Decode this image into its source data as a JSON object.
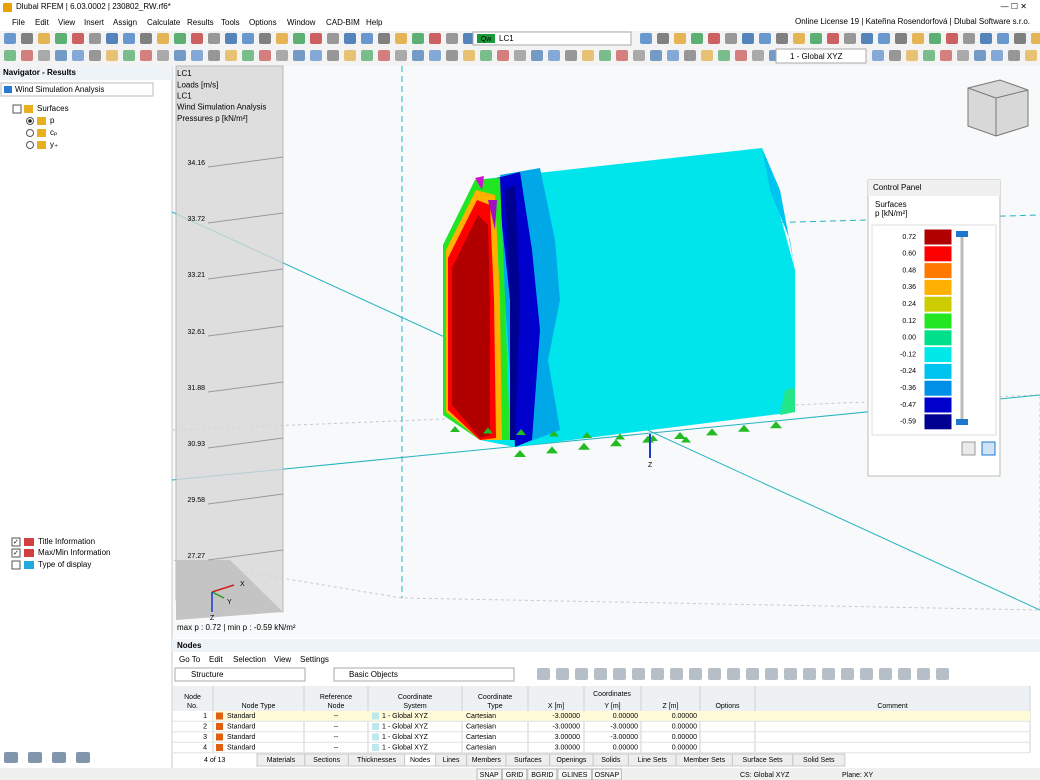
{
  "window": {
    "title": "Dlubal RFEM | 6.03.0002 | 230802_RW.rf6*",
    "license": "Online License 19 | Kateřina Rosendorfová | Dlubal Software s.r.o."
  },
  "menu": [
    "File",
    "Edit",
    "View",
    "Insert",
    "Assign",
    "Calculate",
    "Results",
    "Tools",
    "Options",
    "Window",
    "CAD-BIM",
    "Help"
  ],
  "toolbar": {
    "load_case_badge": "Qw",
    "load_case": "LC1",
    "coordinate_system": "1 - Global XYZ"
  },
  "navigator": {
    "title": "Navigator - Results",
    "analysis": "Wind Simulation Analysis",
    "tree": [
      "Surfaces",
      "p",
      "cₚ",
      "y₊"
    ],
    "display_options": [
      "Title Information",
      "Max/Min Information",
      "Type of display"
    ]
  },
  "viewport": {
    "info": [
      "LC1",
      "Loads [m/s]",
      "LC1",
      "Wind Simulation Analysis",
      "Pressures p [kN/m²]"
    ],
    "wall_labels": [
      "34.16",
      "33.72",
      "33.21",
      "32.61",
      "31.88",
      "30.93",
      "29.58",
      "27.27"
    ],
    "axes": [
      "X",
      "Y",
      "Z"
    ],
    "node_axis": "Z",
    "maxmin": "max p : 0.72 | min p : -0.59 kN/m²"
  },
  "control_panel": {
    "title": "Control Panel",
    "heading": "Surfaces",
    "quantity": "p [kN/m²]",
    "scale": [
      {
        "label": "0.72",
        "color": "#b00000"
      },
      {
        "label": "0.60",
        "color": "#ff0000"
      },
      {
        "label": "0.48",
        "color": "#ff7800"
      },
      {
        "label": "0.36",
        "color": "#ffb000"
      },
      {
        "label": "0.24",
        "color": "#cccc00"
      },
      {
        "label": "0.12",
        "color": "#22e622"
      },
      {
        "label": "0.00",
        "color": "#00e08a"
      },
      {
        "label": "-0.12",
        "color": "#00e8e8"
      },
      {
        "label": "-0.24",
        "color": "#00c4f0"
      },
      {
        "label": "-0.36",
        "color": "#0090e8"
      },
      {
        "label": "-0.47",
        "color": "#0000cc"
      },
      {
        "label": "-0.59",
        "color": "#000090"
      }
    ]
  },
  "nodes": {
    "title": "Nodes",
    "menu": [
      "Go To",
      "Edit",
      "Selection",
      "View",
      "Settings"
    ],
    "structure": "Structure",
    "filter": "Basic Objects",
    "group": "Coordinates",
    "columns": [
      [
        "Node",
        "No."
      ],
      [
        "Node Type"
      ],
      [
        "Reference",
        "Node"
      ],
      [
        "Coordinate",
        "System"
      ],
      [
        "Coordinate",
        "Type"
      ],
      [
        "X [m]"
      ],
      [
        "Y [m]"
      ],
      [
        "Z [m]"
      ],
      [
        "Options"
      ],
      [
        "Comment"
      ]
    ],
    "rows": [
      [
        "1",
        "Standard",
        "--",
        "1 - Global XYZ",
        "Cartesian",
        "-3.00000",
        "0.00000",
        "0.00000"
      ],
      [
        "2",
        "Standard",
        "--",
        "1 - Global XYZ",
        "Cartesian",
        "-3.00000",
        "-3.00000",
        "0.00000"
      ],
      [
        "3",
        "Standard",
        "--",
        "1 - Global XYZ",
        "Cartesian",
        "3.00000",
        "-3.00000",
        "0.00000"
      ],
      [
        "4",
        "Standard",
        "--",
        "1 - Global XYZ",
        "Cartesian",
        "3.00000",
        "0.00000",
        "0.00000"
      ]
    ]
  },
  "tabs": {
    "pager": "4 of 13",
    "items": [
      "Materials",
      "Sections",
      "Thicknesses",
      "Nodes",
      "Lines",
      "Members",
      "Surfaces",
      "Openings",
      "Solids",
      "Line Sets",
      "Member Sets",
      "Surface Sets",
      "Solid Sets"
    ]
  },
  "status": {
    "toggles": [
      "SNAP",
      "GRID",
      "BGRID",
      "GLINES",
      "OSNAP"
    ],
    "cs": "CS: Global XYZ",
    "plane": "Plane: XY"
  }
}
